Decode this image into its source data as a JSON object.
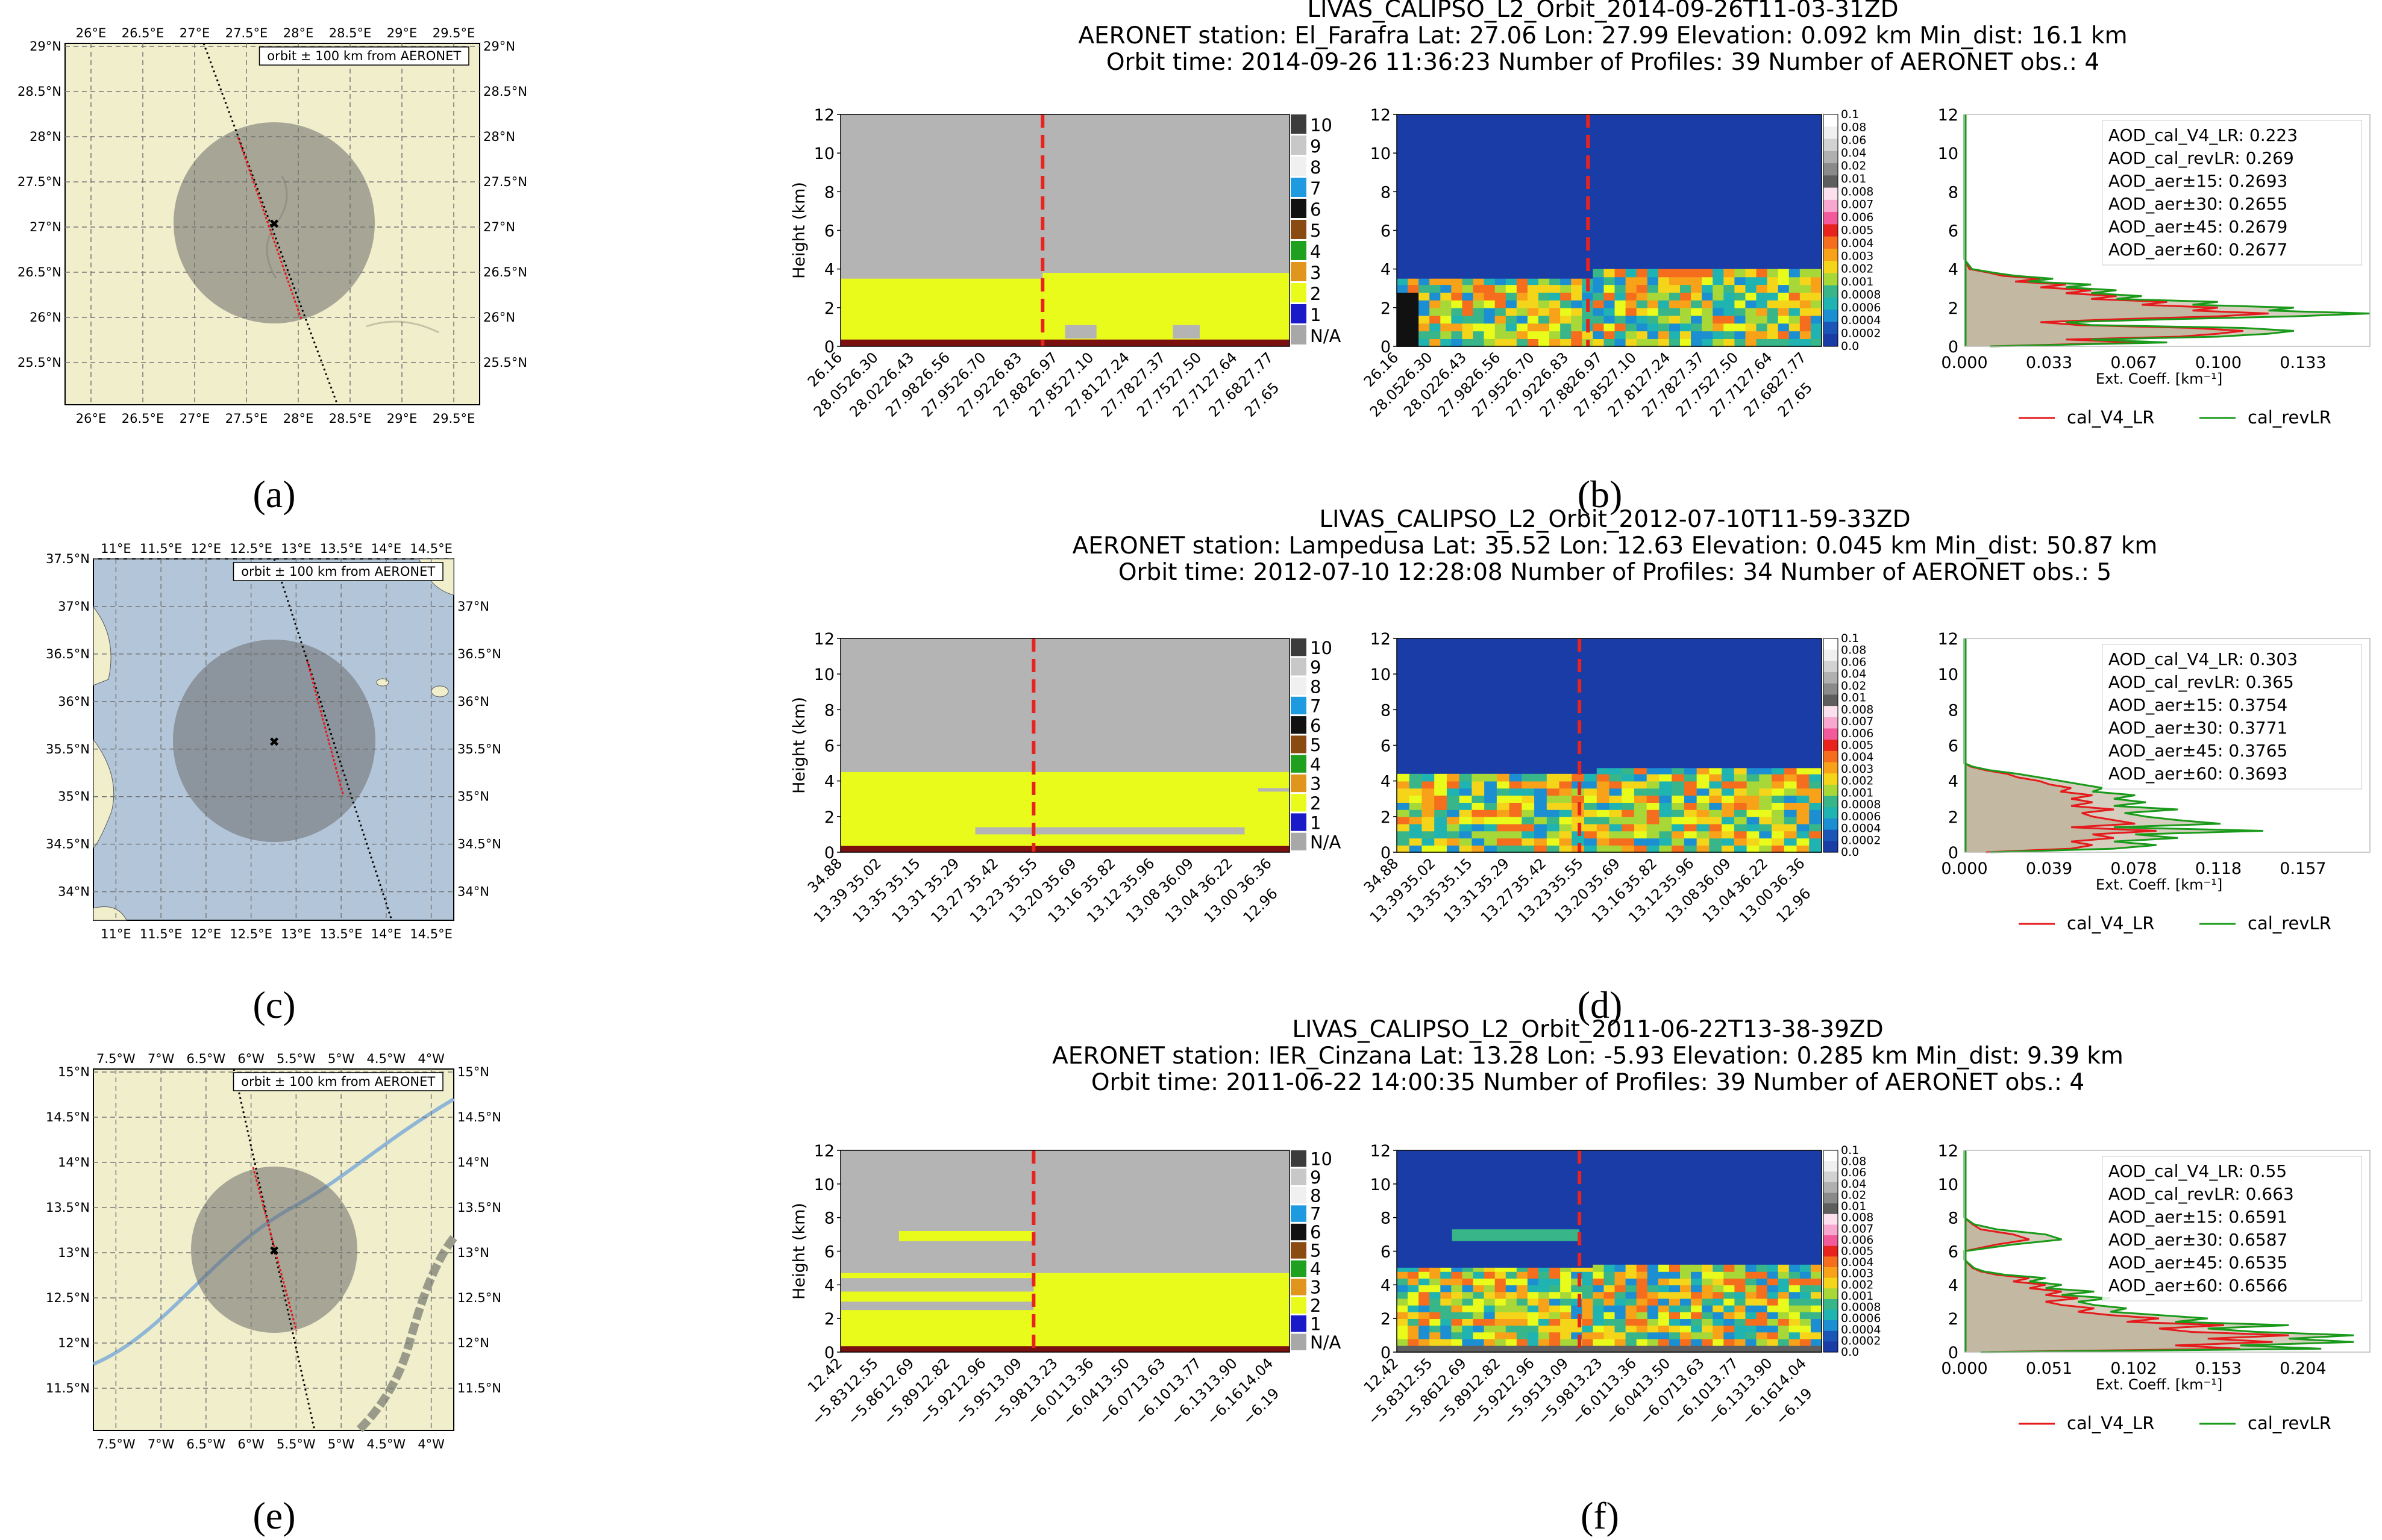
{
  "panel_labels": [
    "(a)",
    "(b)",
    "(c)",
    "(d)",
    "(e)",
    "(f)"
  ],
  "colors": {
    "grey": "#b4b4b4",
    "yellow": "#e9fb1b",
    "darkred": "#7a1010",
    "red_dash": "#e8231d",
    "lidar_bg": "#1a3ca6",
    "desert_land": "#f0eecb",
    "sea": "#b3c6d9",
    "track_red": "#e41a1c",
    "circle": "#6b6b6b",
    "cal_V4": "#e41a1c",
    "cal_rev": "#1a9a1a"
  },
  "class_legend": {
    "labels": [
      "10",
      "9",
      "8",
      "7",
      "6",
      "5",
      "4",
      "3",
      "2",
      "1",
      "N/A"
    ],
    "colors": [
      "#3c3c3c",
      "#c8c8c8",
      "#f0f0f0",
      "#1e9be0",
      "#111111",
      "#8a4b12",
      "#1fa01f",
      "#e0961c",
      "#e9fb1b",
      "#1a1ac9",
      "#a8a8a8"
    ]
  },
  "ext_colorbar": {
    "labels": [
      "0.1",
      "0.08",
      "0.06",
      "0.04",
      "0.02",
      "0.01",
      "0.008",
      "0.007",
      "0.006",
      "0.005",
      "0.004",
      "0.003",
      "0.002",
      "0.001",
      "0.0008",
      "0.0006",
      "0.0004",
      "0.0002",
      "0.0"
    ],
    "colors": [
      "#ffffff",
      "#f0f0f0",
      "#d2d2d2",
      "#b0b0b0",
      "#8a8a8a",
      "#5e5e5e",
      "#fbe0ee",
      "#f8a8cf",
      "#f25a9c",
      "#e8231d",
      "#f56e1e",
      "#f7a218",
      "#f5d51a",
      "#a8d838",
      "#38b68a",
      "#1fb3b1",
      "#1b8fd1",
      "#1a55b7",
      "#1a3ca6"
    ]
  },
  "maps": [
    {
      "id": "a",
      "label": "orbit ± 100 km from AERONET",
      "top_ticks": [
        "26°E",
        "26.5°E",
        "27°E",
        "27.5°E",
        "28°E",
        "28.5°E",
        "29°E",
        "29.5°E"
      ],
      "bottom_ticks": [
        "26°E",
        "26.5°E",
        "27°E",
        "27.5°E",
        "28°E",
        "28.5°E",
        "29°E",
        "29.5°E"
      ],
      "left_ticks": [
        "29°N",
        "28.5°N",
        "28°N",
        "27.5°N",
        "27°N",
        "26.5°N",
        "26°N",
        "25.5°N"
      ],
      "right_ticks": [
        "29°N",
        "28.5°N",
        "28°N",
        "27.5°N",
        "27°N",
        "26.5°N",
        "26°N",
        "25.5°N"
      ]
    },
    {
      "id": "c",
      "label": "orbit ± 100 km from AERONET",
      "top_ticks": [
        "11°E",
        "11.5°E",
        "12°E",
        "12.5°E",
        "13°E",
        "13.5°E",
        "14°E",
        "14.5°E"
      ],
      "bottom_ticks": [
        "11°E",
        "11.5°E",
        "12°E",
        "12.5°E",
        "13°E",
        "13.5°E",
        "14°E",
        "14.5°E"
      ],
      "left_ticks": [
        "37.5°N",
        "37°N",
        "36.5°N",
        "36°N",
        "35.5°N",
        "35°N",
        "34.5°N",
        "34°N"
      ],
      "right_ticks": [
        "37°N",
        "36.5°N",
        "36°N",
        "35.5°N",
        "35°N",
        "34.5°N",
        "34°N"
      ]
    },
    {
      "id": "e",
      "label": "orbit ± 100 km from AERONET",
      "top_ticks": [
        "7.5°W",
        "7°W",
        "6.5°W",
        "6°W",
        "5.5°W",
        "5°W",
        "4.5°W",
        "4°W"
      ],
      "bottom_ticks": [
        "7.5°W",
        "7°W",
        "6.5°W",
        "6°W",
        "5.5°W",
        "5°W",
        "4.5°W",
        "4°W"
      ],
      "left_ticks": [
        "15°N",
        "14.5°N",
        "14°N",
        "13.5°N",
        "13°N",
        "12.5°N",
        "12°N",
        "11.5°N"
      ],
      "right_ticks": [
        "15°N",
        "14.5°N",
        "14°N",
        "13.5°N",
        "13°N",
        "12.5°N",
        "12°N",
        "11.5°N"
      ]
    }
  ],
  "chart_data": [
    {
      "panel": "b",
      "type": "heatmap",
      "title_lines": [
        "LIVAS_CALIPSO_L2_Orbit_2014-09-26T11-03-31ZD",
        "AERONET station: El_Farafra     Lat: 27.06     Lon: 27.99     Elevation: 0.092 km     Min_dist: 16.1 km",
        "Orbit time: 2014-09-26 11:36:23     Number of Profiles: 39     Number of AERONET obs.: 4"
      ],
      "ylabel": "Height (km)",
      "ylim": [
        0,
        12
      ],
      "yticks": [
        "0",
        "2",
        "4",
        "6",
        "8",
        "10",
        "12"
      ],
      "lat_labels": [
        "26.16",
        "26.30",
        "26.43",
        "26.56",
        "26.70",
        "26.83",
        "26.97",
        "27.10",
        "27.24",
        "27.37",
        "27.50",
        "27.64",
        "27.77"
      ],
      "lon_labels": [
        "28.05",
        "28.02",
        "27.98",
        "27.95",
        "27.92",
        "27.88",
        "27.85",
        "27.81",
        "27.78",
        "27.75",
        "27.71",
        "27.68",
        "27.65"
      ],
      "profile": {
        "xlabel": "Ext. Coeff. [km⁻¹]",
        "xticks": [
          "0.000",
          "0.033",
          "0.067",
          "0.100",
          "0.133"
        ],
        "xmax": 0.16,
        "ylim": [
          0,
          12
        ],
        "yticks": [
          "0",
          "2",
          "4",
          "6",
          "8",
          "10",
          "12"
        ],
        "legend": [
          "cal_V4_LR",
          "cal_revLR"
        ],
        "aod": [
          "AOD_cal_V4_LR: 0.223",
          "AOD_cal_revLR: 0.269",
          "AOD_aer±15: 0.2693",
          "AOD_aer±30: 0.2655",
          "AOD_aer±45: 0.2679",
          "AOD_aer±60: 0.2677"
        ],
        "series": [
          {
            "name": "cal_V4_LR",
            "h": [
              0,
              0.2,
              0.35,
              0.5,
              0.65,
              0.8,
              0.95,
              1.1,
              1.25,
              1.4,
              1.55,
              1.7,
              1.85,
              2.0,
              2.15,
              2.3,
              2.45,
              2.6,
              2.75,
              2.9,
              3.05,
              3.2,
              3.35,
              3.5,
              3.65,
              3.8,
              4.0,
              4.5,
              12
            ],
            "v": [
              0.01,
              0.07,
              0.04,
              0.085,
              0.1,
              0.11,
              0.09,
              0.045,
              0.03,
              0.06,
              0.1,
              0.12,
              0.09,
              0.1,
              0.07,
              0.08,
              0.05,
              0.06,
              0.04,
              0.05,
              0.03,
              0.04,
              0.02,
              0.03,
              0.015,
              0.01,
              0.002,
              0,
              0
            ]
          },
          {
            "name": "cal_revLR",
            "h": [
              0,
              0.2,
              0.35,
              0.5,
              0.65,
              0.8,
              0.95,
              1.1,
              1.25,
              1.4,
              1.55,
              1.7,
              1.85,
              2.0,
              2.15,
              2.3,
              2.45,
              2.6,
              2.75,
              2.9,
              3.05,
              3.2,
              3.35,
              3.5,
              3.65,
              3.8,
              4.0,
              4.5,
              12
            ],
            "v": [
              0.01,
              0.08,
              0.05,
              0.1,
              0.12,
              0.13,
              0.11,
              0.05,
              0.04,
              0.08,
              0.13,
              0.16,
              0.12,
              0.13,
              0.09,
              0.1,
              0.06,
              0.07,
              0.05,
              0.06,
              0.04,
              0.05,
              0.025,
              0.035,
              0.02,
              0.012,
              0.003,
              0,
              0
            ]
          }
        ]
      }
    },
    {
      "panel": "d",
      "type": "heatmap",
      "title_lines": [
        "LIVAS_CALIPSO_L2_Orbit_2012-07-10T11-59-33ZD",
        "AERONET station: Lampedusa     Lat: 35.52     Lon: 12.63     Elevation: 0.045 km     Min_dist: 50.87 km",
        "Orbit time: 2012-07-10 12:28:08     Number of Profiles: 34     Number of AERONET obs.: 5"
      ],
      "ylabel": "Height (km)",
      "ylim": [
        0,
        12
      ],
      "yticks": [
        "0",
        "2",
        "4",
        "6",
        "8",
        "10",
        "12"
      ],
      "lat_labels": [
        "34.88",
        "35.02",
        "35.15",
        "35.29",
        "35.42",
        "35.55",
        "35.69",
        "35.82",
        "35.96",
        "36.09",
        "36.22",
        "36.36"
      ],
      "lon_labels": [
        "13.39",
        "13.35",
        "13.31",
        "13.27",
        "13.23",
        "13.20",
        "13.16",
        "13.12",
        "13.08",
        "13.04",
        "13.00",
        "12.96"
      ],
      "profile": {
        "xlabel": "Ext. Coeff. [km⁻¹]",
        "xticks": [
          "0.000",
          "0.039",
          "0.078",
          "0.118",
          "0.157"
        ],
        "xmax": 0.19,
        "ylim": [
          0,
          12
        ],
        "yticks": [
          "0",
          "2",
          "4",
          "6",
          "8",
          "10",
          "12"
        ],
        "legend": [
          "cal_V4_LR",
          "cal_revLR"
        ],
        "aod": [
          "AOD_cal_V4_LR: 0.303",
          "AOD_cal_revLR: 0.365",
          "AOD_aer±15: 0.3754",
          "AOD_aer±30: 0.3771",
          "AOD_aer±45: 0.3765",
          "AOD_aer±60: 0.3693"
        ],
        "series": [
          {
            "name": "cal_V4_LR",
            "h": [
              0,
              0.2,
              0.4,
              0.6,
              0.8,
              1.0,
              1.2,
              1.4,
              1.6,
              1.8,
              2.0,
              2.2,
              2.4,
              2.6,
              2.8,
              3.0,
              3.2,
              3.4,
              3.6,
              3.8,
              4.0,
              4.2,
              4.4,
              4.6,
              4.8,
              5.0,
              12
            ],
            "v": [
              0.01,
              0.05,
              0.06,
              0.05,
              0.07,
              0.06,
              0.09,
              0.05,
              0.08,
              0.07,
              0.06,
              0.055,
              0.07,
              0.05,
              0.06,
              0.05,
              0.06,
              0.045,
              0.05,
              0.04,
              0.035,
              0.025,
              0.02,
              0.01,
              0.003,
              0,
              0
            ]
          },
          {
            "name": "cal_revLR",
            "h": [
              0,
              0.2,
              0.4,
              0.6,
              0.8,
              1.0,
              1.2,
              1.4,
              1.6,
              1.8,
              2.0,
              2.2,
              2.4,
              2.6,
              2.8,
              3.0,
              3.2,
              3.4,
              3.6,
              3.8,
              4.0,
              4.2,
              4.4,
              4.6,
              4.8,
              5.0,
              12
            ],
            "v": [
              0.012,
              0.07,
              0.09,
              0.07,
              0.1,
              0.08,
              0.14,
              0.07,
              0.12,
              0.1,
              0.085,
              0.075,
              0.1,
              0.07,
              0.085,
              0.07,
              0.08,
              0.06,
              0.065,
              0.055,
              0.045,
              0.035,
              0.025,
              0.012,
              0.004,
              0,
              0
            ]
          }
        ]
      }
    },
    {
      "panel": "f",
      "type": "heatmap",
      "title_lines": [
        "LIVAS_CALIPSO_L2_Orbit_2011-06-22T13-38-39ZD",
        "AERONET station: IER_Cinzana     Lat: 13.28     Lon: -5.93     Elevation: 0.285 km     Min_dist: 9.39 km",
        "Orbit time: 2011-06-22 14:00:35     Number of Profiles: 39     Number of AERONET obs.: 4"
      ],
      "ylabel": "Height (km)",
      "ylim": [
        0,
        12
      ],
      "yticks": [
        "0",
        "2",
        "4",
        "6",
        "8",
        "10",
        "12"
      ],
      "lat_labels": [
        "12.42",
        "12.55",
        "12.69",
        "12.82",
        "12.96",
        "13.09",
        "13.23",
        "13.36",
        "13.50",
        "13.63",
        "13.77",
        "13.90",
        "14.04"
      ],
      "lon_labels": [
        "−5.83",
        "−5.86",
        "−5.89",
        "−5.92",
        "−5.95",
        "−5.98",
        "−6.01",
        "−6.04",
        "−6.07",
        "−6.10",
        "−6.13",
        "−6.16",
        "−6.19"
      ],
      "profile": {
        "xlabel": "Ext. Coeff. [km⁻¹]",
        "xticks": [
          "0.000",
          "0.051",
          "0.102",
          "0.153",
          "0.204"
        ],
        "xmax": 0.25,
        "ylim": [
          0,
          12
        ],
        "yticks": [
          "0",
          "2",
          "4",
          "6",
          "8",
          "10",
          "12"
        ],
        "legend": [
          "cal_V4_LR",
          "cal_revLR"
        ],
        "aod": [
          "AOD_cal_V4_LR: 0.55",
          "AOD_cal_revLR: 0.663",
          "AOD_aer±15: 0.6591",
          "AOD_aer±30: 0.6587",
          "AOD_aer±45: 0.6535",
          "AOD_aer±60: 0.6566"
        ],
        "series": [
          {
            "name": "cal_V4_LR",
            "h": [
              0,
              0.2,
              0.4,
              0.6,
              0.8,
              1.0,
              1.2,
              1.4,
              1.6,
              1.8,
              2.0,
              2.2,
              2.4,
              2.6,
              2.8,
              3.0,
              3.2,
              3.4,
              3.6,
              3.8,
              4.0,
              4.2,
              4.4,
              4.6,
              4.8,
              5.0,
              5.5,
              6.0,
              6.4,
              6.7,
              7.0,
              7.3,
              7.6,
              8.0,
              12
            ],
            "v": [
              0.01,
              0.17,
              0.13,
              0.19,
              0.15,
              0.2,
              0.14,
              0.12,
              0.16,
              0.1,
              0.12,
              0.09,
              0.07,
              0.08,
              0.06,
              0.05,
              0.07,
              0.05,
              0.06,
              0.04,
              0.05,
              0.03,
              0.04,
              0.02,
              0.01,
              0.005,
              0,
              0,
              0.02,
              0.04,
              0.03,
              0.01,
              0.005,
              0,
              0
            ]
          },
          {
            "name": "cal_revLR",
            "h": [
              0,
              0.2,
              0.4,
              0.6,
              0.8,
              1.0,
              1.2,
              1.4,
              1.6,
              1.8,
              2.0,
              2.2,
              2.4,
              2.6,
              2.8,
              3.0,
              3.2,
              3.4,
              3.6,
              3.8,
              4.0,
              4.2,
              4.4,
              4.6,
              4.8,
              5.0,
              5.5,
              6.0,
              6.4,
              6.7,
              7.0,
              7.3,
              7.6,
              8.0,
              12
            ],
            "v": [
              0.01,
              0.22,
              0.17,
              0.24,
              0.2,
              0.24,
              0.18,
              0.15,
              0.2,
              0.13,
              0.15,
              0.12,
              0.09,
              0.1,
              0.08,
              0.07,
              0.09,
              0.06,
              0.08,
              0.05,
              0.06,
              0.04,
              0.05,
              0.025,
              0.012,
              0.006,
              0,
              0,
              0.03,
              0.06,
              0.05,
              0.02,
              0.006,
              0,
              0
            ]
          }
        ]
      }
    }
  ]
}
